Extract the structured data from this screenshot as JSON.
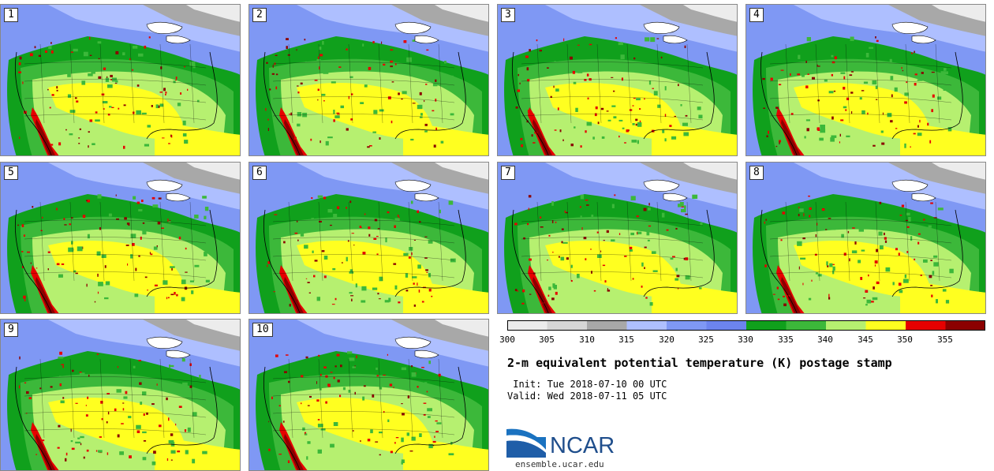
{
  "members": [
    "1",
    "2",
    "3",
    "4",
    "5",
    "6",
    "7",
    "8",
    "9",
    "10"
  ],
  "colorbar": {
    "colors": [
      "#ececec",
      "#d6d6d6",
      "#a8a8a8",
      "#aebfff",
      "#7f98f4",
      "#6c84ee",
      "#10a01c",
      "#3cb83a",
      "#b6f070",
      "#ffff20",
      "#e60000",
      "#8b0000"
    ],
    "ticks": [
      "300",
      "305",
      "310",
      "315",
      "320",
      "325",
      "330",
      "335",
      "340",
      "345",
      "350",
      "355"
    ]
  },
  "title": "2-m equivalent potential temperature (K) postage stamp",
  "init": " Init: Tue 2018-07-10 00 UTC",
  "valid": "Valid: Wed 2018-07-11 05 UTC",
  "logo": {
    "text": "NCAR",
    "url": "ensemble.ucar.edu"
  }
}
